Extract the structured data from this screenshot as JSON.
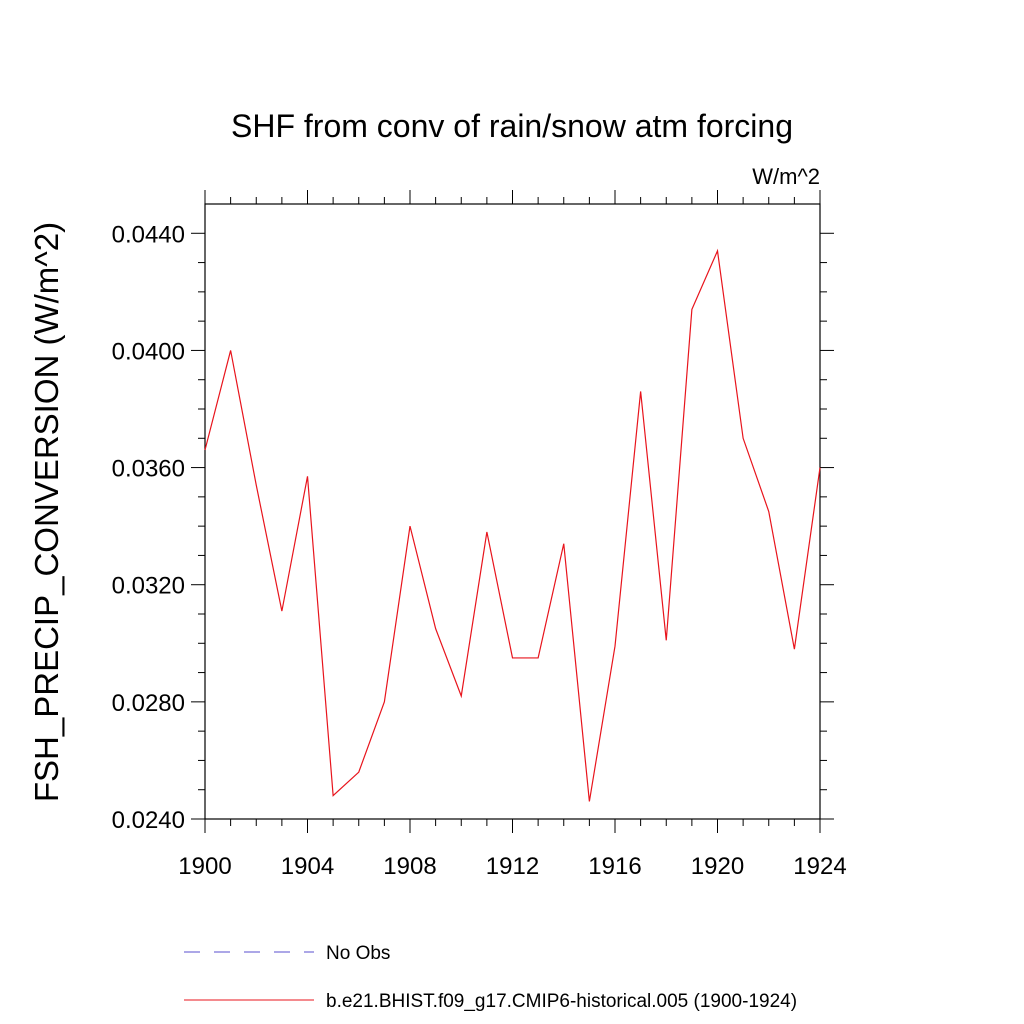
{
  "chart_data": {
    "type": "line",
    "title": "SHF from conv of rain/snow atm forcing",
    "units": "W/m^2",
    "xlabel": "",
    "ylabel": "FSH_PRECIP_CONVERSION  (W/m^2)",
    "xlim": [
      1900,
      1924
    ],
    "ylim": [
      0.024,
      0.045
    ],
    "x_ticks": [
      1900,
      1904,
      1908,
      1912,
      1916,
      1920,
      1924
    ],
    "y_ticks": [
      "0.0240",
      "0.0280",
      "0.0320",
      "0.0360",
      "0.0400",
      "0.0440"
    ],
    "y_tick_values": [
      0.024,
      0.028,
      0.032,
      0.036,
      0.04,
      0.044
    ],
    "grid": false,
    "legend_position": "bottom",
    "series": [
      {
        "name": "No Obs",
        "color": "#5a4fcf",
        "style": "dashed",
        "x": [],
        "values": []
      },
      {
        "name": "b.e21.BHIST.f09_g17.CMIP6-historical.005 (1900-1924)",
        "color": "#e8141c",
        "style": "solid",
        "x": [
          1900,
          1901,
          1902,
          1903,
          1904,
          1905,
          1906,
          1907,
          1908,
          1909,
          1910,
          1911,
          1912,
          1913,
          1914,
          1915,
          1916,
          1917,
          1918,
          1919,
          1920,
          1921,
          1922,
          1923,
          1924
        ],
        "values": [
          0.0366,
          0.04,
          0.0354,
          0.0311,
          0.0357,
          0.0248,
          0.0256,
          0.028,
          0.034,
          0.0305,
          0.0282,
          0.0338,
          0.0295,
          0.0295,
          0.0334,
          0.0246,
          0.0299,
          0.0386,
          0.0301,
          0.0414,
          0.0434,
          0.037,
          0.0345,
          0.0298,
          0.036
        ]
      }
    ]
  }
}
